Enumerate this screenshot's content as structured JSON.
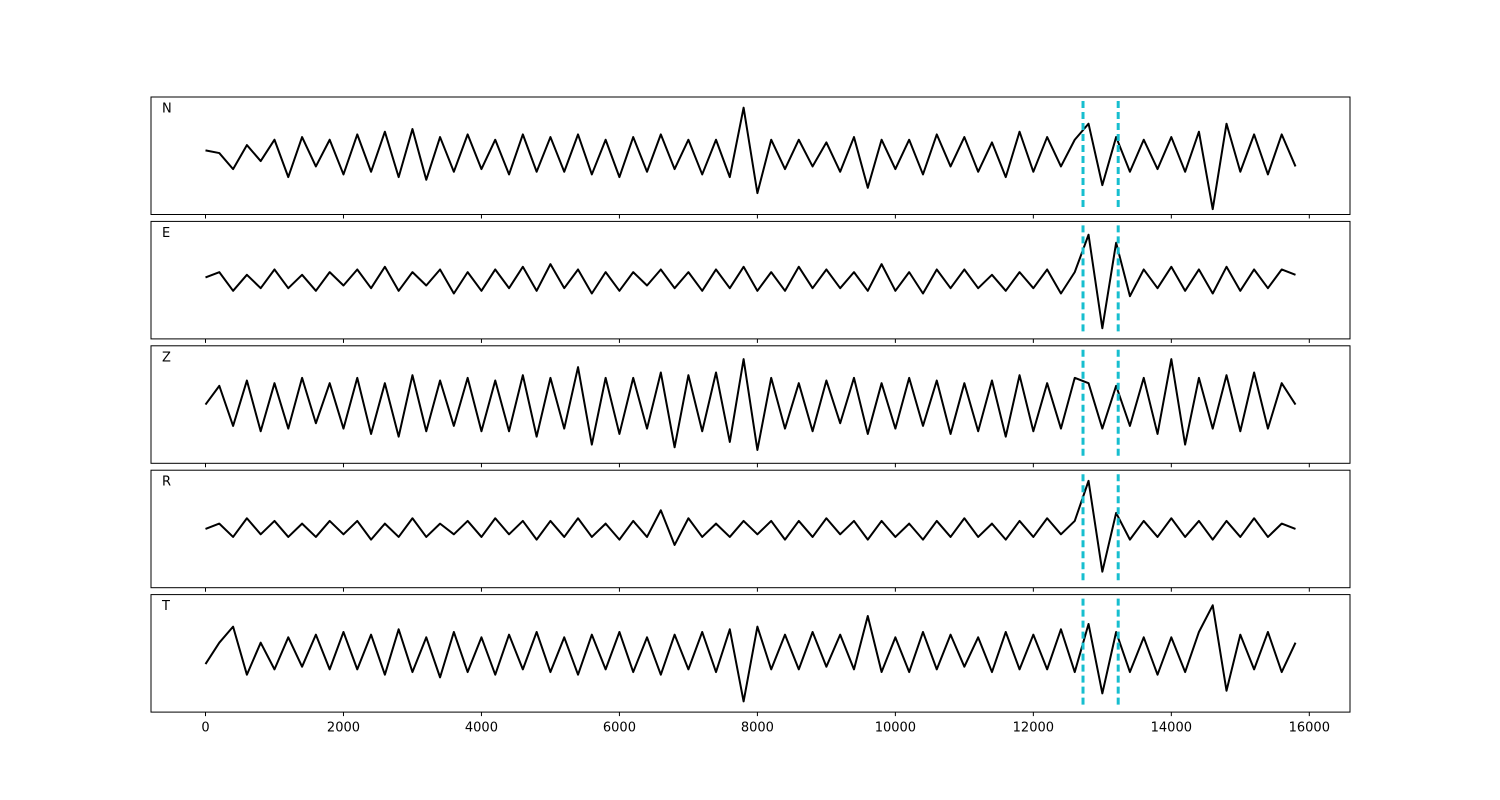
{
  "chart_data": {
    "type": "line",
    "layout": "stacked",
    "x": [
      0,
      200,
      400,
      600,
      800,
      1000,
      1200,
      1400,
      1600,
      1800,
      2000,
      2200,
      2400,
      2600,
      2800,
      3000,
      3200,
      3400,
      3600,
      3800,
      4000,
      4200,
      4400,
      4600,
      4800,
      5000,
      5200,
      5400,
      5600,
      5800,
      6000,
      6200,
      6400,
      6600,
      6800,
      7000,
      7200,
      7400,
      7600,
      7800,
      8000,
      8200,
      8400,
      8600,
      8800,
      9000,
      9200,
      9400,
      9600,
      9800,
      10000,
      10200,
      10400,
      10600,
      10800,
      11000,
      11200,
      11400,
      11600,
      11800,
      12000,
      12200,
      12400,
      12600,
      12800,
      13000,
      13200,
      13400,
      13600,
      13800,
      14000,
      14200,
      14400,
      14600,
      14800,
      15000,
      15200,
      15400,
      15600,
      15800
    ],
    "series": [
      {
        "name": "N",
        "color": "#000000",
        "values": [
          0.1,
          0.05,
          -0.25,
          0.2,
          -0.1,
          0.3,
          -0.4,
          0.35,
          -0.2,
          0.3,
          -0.35,
          0.4,
          -0.3,
          0.45,
          -0.4,
          0.5,
          -0.45,
          0.35,
          -0.3,
          0.4,
          -0.25,
          0.3,
          -0.35,
          0.4,
          -0.3,
          0.35,
          -0.3,
          0.4,
          -0.35,
          0.3,
          -0.4,
          0.35,
          -0.3,
          0.4,
          -0.25,
          0.3,
          -0.35,
          0.3,
          -0.4,
          0.9,
          -0.7,
          0.3,
          -0.25,
          0.3,
          -0.2,
          0.25,
          -0.3,
          0.35,
          -0.6,
          0.3,
          -0.25,
          0.3,
          -0.35,
          0.4,
          -0.2,
          0.35,
          -0.3,
          0.25,
          -0.4,
          0.45,
          -0.3,
          0.35,
          -0.2,
          0.3,
          0.6,
          -0.55,
          0.35,
          -0.3,
          0.3,
          -0.25,
          0.35,
          -0.3,
          0.45,
          -1.0,
          0.6,
          -0.3,
          0.4,
          -0.35,
          0.4,
          -0.2
        ]
      },
      {
        "name": "E",
        "color": "#000000",
        "values": [
          0.05,
          0.15,
          -0.2,
          0.1,
          -0.15,
          0.2,
          -0.15,
          0.1,
          -0.2,
          0.15,
          -0.1,
          0.2,
          -0.15,
          0.25,
          -0.2,
          0.15,
          -0.1,
          0.2,
          -0.25,
          0.15,
          -0.2,
          0.2,
          -0.15,
          0.25,
          -0.2,
          0.3,
          -0.15,
          0.2,
          -0.25,
          0.15,
          -0.2,
          0.15,
          -0.1,
          0.2,
          -0.15,
          0.15,
          -0.2,
          0.2,
          -0.15,
          0.25,
          -0.2,
          0.15,
          -0.2,
          0.25,
          -0.15,
          0.2,
          -0.15,
          0.15,
          -0.2,
          0.3,
          -0.2,
          0.15,
          -0.25,
          0.2,
          -0.15,
          0.2,
          -0.15,
          0.1,
          -0.2,
          0.15,
          -0.15,
          0.2,
          -0.25,
          0.15,
          0.85,
          -0.9,
          0.7,
          -0.3,
          0.2,
          -0.15,
          0.25,
          -0.2,
          0.2,
          -0.25,
          0.25,
          -0.2,
          0.2,
          -0.15,
          0.2,
          0.1
        ]
      },
      {
        "name": "Z",
        "color": "#000000",
        "values": [
          0.0,
          0.35,
          -0.4,
          0.45,
          -0.5,
          0.4,
          -0.45,
          0.5,
          -0.35,
          0.4,
          -0.45,
          0.5,
          -0.55,
          0.4,
          -0.6,
          0.55,
          -0.5,
          0.45,
          -0.4,
          0.5,
          -0.5,
          0.45,
          -0.5,
          0.55,
          -0.6,
          0.5,
          -0.45,
          0.7,
          -0.75,
          0.5,
          -0.55,
          0.5,
          -0.45,
          0.6,
          -0.8,
          0.55,
          -0.5,
          0.6,
          -0.7,
          0.85,
          -0.85,
          0.5,
          -0.45,
          0.4,
          -0.5,
          0.45,
          -0.35,
          0.5,
          -0.55,
          0.4,
          -0.45,
          0.5,
          -0.4,
          0.45,
          -0.55,
          0.4,
          -0.5,
          0.45,
          -0.6,
          0.55,
          -0.5,
          0.4,
          -0.45,
          0.5,
          0.4,
          -0.45,
          0.35,
          -0.4,
          0.5,
          -0.55,
          0.85,
          -0.75,
          0.5,
          -0.45,
          0.55,
          -0.5,
          0.6,
          -0.45,
          0.4,
          0.0
        ]
      },
      {
        "name": "R",
        "color": "#000000",
        "values": [
          0.0,
          0.1,
          -0.15,
          0.2,
          -0.1,
          0.15,
          -0.15,
          0.1,
          -0.15,
          0.15,
          -0.1,
          0.15,
          -0.2,
          0.1,
          -0.15,
          0.2,
          -0.15,
          0.1,
          -0.1,
          0.15,
          -0.15,
          0.2,
          -0.1,
          0.15,
          -0.2,
          0.15,
          -0.15,
          0.2,
          -0.15,
          0.1,
          -0.2,
          0.15,
          -0.15,
          0.35,
          -0.3,
          0.2,
          -0.15,
          0.1,
          -0.15,
          0.15,
          -0.1,
          0.15,
          -0.2,
          0.15,
          -0.15,
          0.2,
          -0.1,
          0.15,
          -0.2,
          0.15,
          -0.15,
          0.1,
          -0.2,
          0.15,
          -0.15,
          0.2,
          -0.15,
          0.1,
          -0.2,
          0.15,
          -0.15,
          0.2,
          -0.1,
          0.15,
          0.9,
          -0.8,
          0.3,
          -0.2,
          0.15,
          -0.15,
          0.2,
          -0.15,
          0.15,
          -0.2,
          0.15,
          -0.15,
          0.2,
          -0.15,
          0.1,
          0.0
        ]
      },
      {
        "name": "T",
        "color": "#000000",
        "values": [
          -0.2,
          0.2,
          0.5,
          -0.4,
          0.2,
          -0.3,
          0.3,
          -0.25,
          0.35,
          -0.3,
          0.4,
          -0.3,
          0.35,
          -0.4,
          0.45,
          -0.35,
          0.3,
          -0.45,
          0.4,
          -0.35,
          0.3,
          -0.4,
          0.35,
          -0.3,
          0.4,
          -0.35,
          0.3,
          -0.4,
          0.35,
          -0.3,
          0.4,
          -0.35,
          0.3,
          -0.4,
          0.35,
          -0.3,
          0.4,
          -0.35,
          0.45,
          -0.9,
          0.5,
          -0.3,
          0.35,
          -0.3,
          0.4,
          -0.25,
          0.35,
          -0.3,
          0.7,
          -0.35,
          0.3,
          -0.35,
          0.4,
          -0.3,
          0.35,
          -0.25,
          0.3,
          -0.35,
          0.4,
          -0.3,
          0.35,
          -0.3,
          0.45,
          -0.35,
          0.55,
          -0.75,
          0.4,
          -0.35,
          0.3,
          -0.4,
          0.3,
          -0.35,
          0.4,
          0.9,
          -0.7,
          0.35,
          -0.3,
          0.4,
          -0.35,
          0.2
        ]
      }
    ],
    "xlim": [
      -790,
      16590
    ],
    "xticks": [
      0,
      2000,
      4000,
      6000,
      8000,
      10000,
      12000,
      14000,
      16000
    ],
    "ylim": [
      -1.1,
      1.1
    ],
    "vlines": [
      {
        "x": 12720,
        "color": "#17becf",
        "style": "dashed"
      },
      {
        "x": 13230,
        "color": "#17becf",
        "style": "dashed"
      }
    ]
  }
}
